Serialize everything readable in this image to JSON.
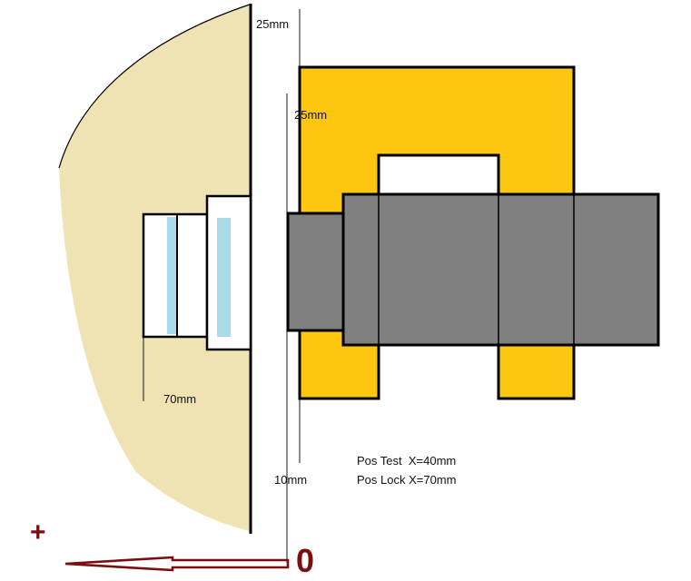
{
  "colors": {
    "background": "#ffffff",
    "beige_body": "#efe3b4",
    "yellow_frame": "#fdc70f",
    "gray_bar": "#808080",
    "light_blue": "#a7dbea",
    "dark_red": "#7a0f0f",
    "outline": "#000000"
  },
  "labels": {
    "dim_25mm_top": "25mm",
    "dim_25mm_mid": "25mm",
    "dim_70mm": "70mm",
    "dim_10mm": "10mm",
    "pos_test": "Pos Test  X=40mm",
    "pos_lock": "Pos Lock X=70mm",
    "plus_sign": "+",
    "zero_mark": "0"
  },
  "icons": {
    "direction_arrow": "left-arrow-icon"
  }
}
